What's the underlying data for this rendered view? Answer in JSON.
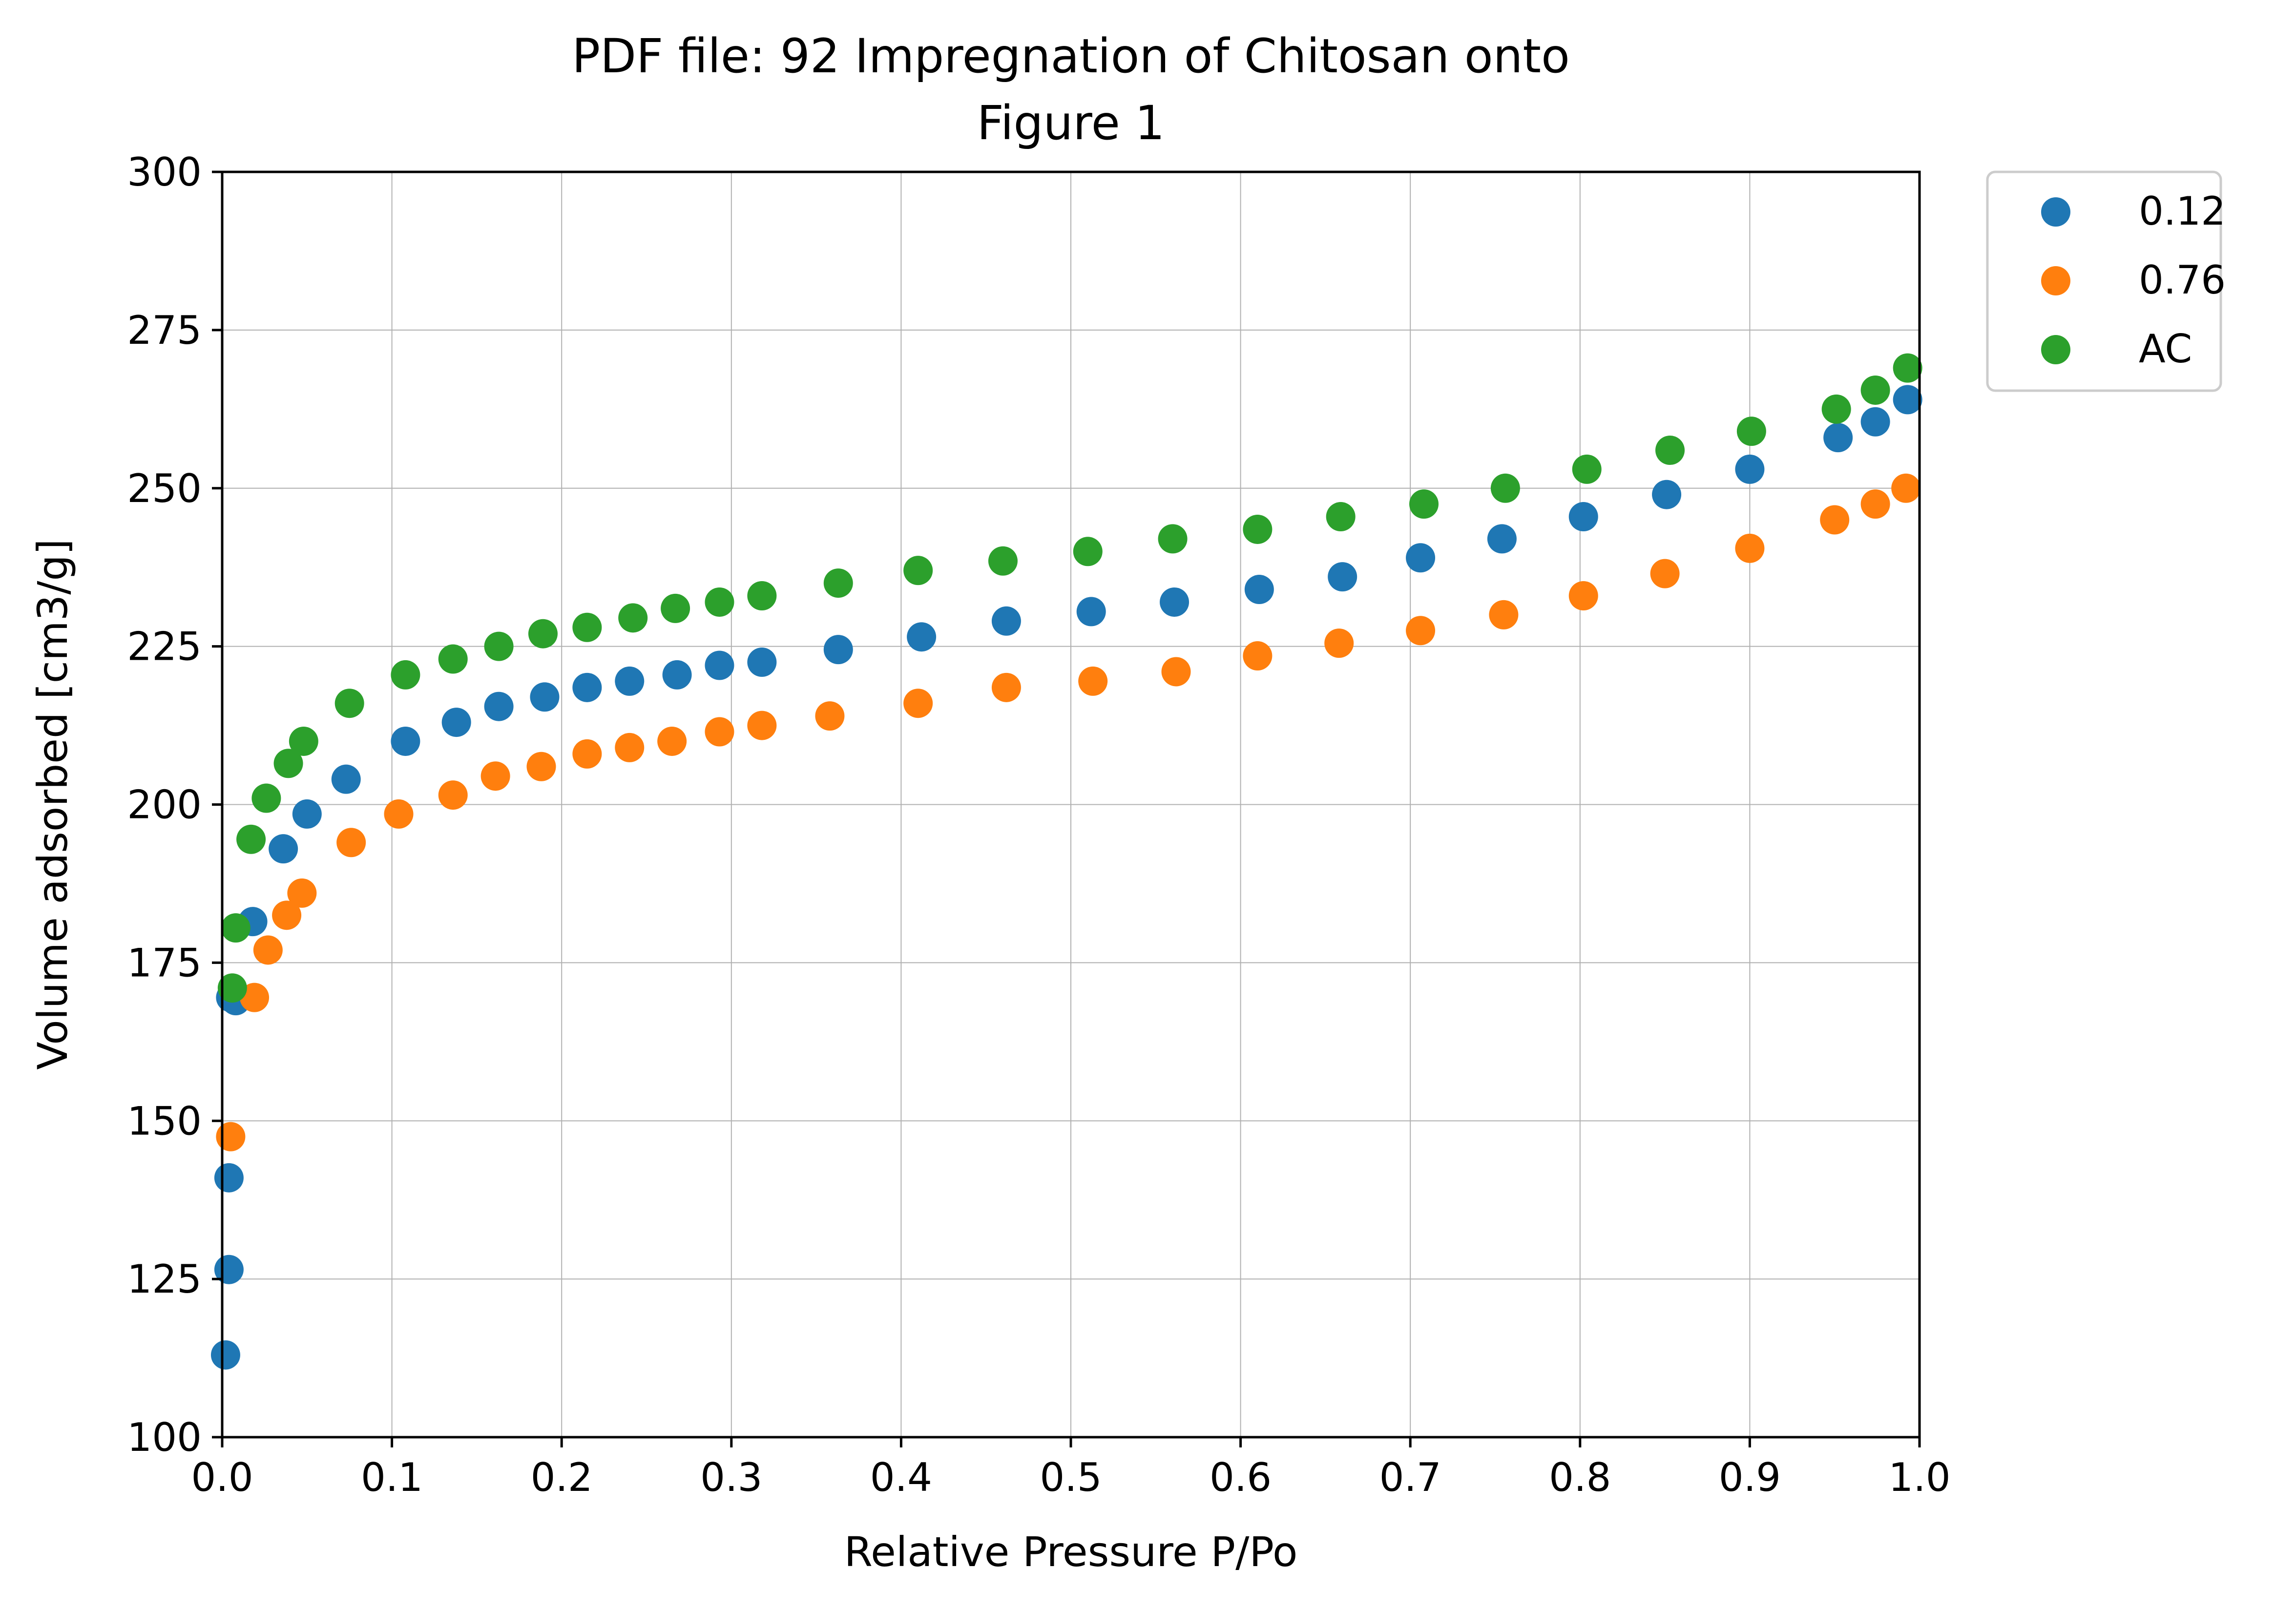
{
  "chart_data": {
    "type": "scatter",
    "title": "PDF file: 92 Impregnation of Chitosan onto",
    "subtitle": "Figure 1",
    "xlabel": "Relative Pressure P/Po",
    "ylabel": "Volume adsorbed [cm3/g]",
    "xlim": [
      0.0,
      1.0
    ],
    "ylim": [
      100,
      300
    ],
    "xticks": [
      "0.0",
      "0.1",
      "0.2",
      "0.3",
      "0.4",
      "0.5",
      "0.6",
      "0.7",
      "0.8",
      "0.9",
      "1.0"
    ],
    "yticks": [
      "100",
      "125",
      "150",
      "175",
      "200",
      "225",
      "250",
      "275",
      "300"
    ],
    "grid": true,
    "legend": "outside-top-right",
    "series": [
      {
        "name": "0.12",
        "color": "#1f77b4",
        "x": [
          0.002,
          0.004,
          0.004,
          0.005,
          0.008,
          0.018,
          0.036,
          0.05,
          0.073,
          0.108,
          0.138,
          0.163,
          0.19,
          0.215,
          0.24,
          0.268,
          0.293,
          0.318,
          0.363,
          0.412,
          0.462,
          0.512,
          0.561,
          0.611,
          0.66,
          0.706,
          0.754,
          0.802,
          0.851,
          0.9,
          0.952,
          0.974,
          0.993
        ],
        "y": [
          113,
          126.5,
          141,
          169.5,
          169,
          181.5,
          193,
          198.5,
          204,
          210,
          213,
          215.5,
          217,
          218.5,
          219.5,
          220.5,
          222,
          222.5,
          224.5,
          226.5,
          229,
          230.5,
          232,
          234,
          236,
          239,
          242,
          245.5,
          249,
          253,
          258,
          260.5,
          264
        ]
      },
      {
        "name": "0.76",
        "color": "#ff7f0e",
        "x": [
          0.005,
          0.019,
          0.027,
          0.038,
          0.047,
          0.076,
          0.104,
          0.136,
          0.161,
          0.188,
          0.215,
          0.24,
          0.265,
          0.293,
          0.318,
          0.358,
          0.41,
          0.462,
          0.513,
          0.562,
          0.61,
          0.658,
          0.706,
          0.755,
          0.802,
          0.85,
          0.9,
          0.95,
          0.974,
          0.992
        ],
        "y": [
          147.5,
          169.5,
          177,
          182.5,
          186,
          194,
          198.5,
          201.5,
          204.5,
          206,
          208,
          209,
          210,
          211.5,
          212.5,
          214,
          216,
          218.5,
          219.5,
          221,
          223.5,
          225.5,
          227.5,
          230,
          233,
          236.5,
          240.5,
          245,
          247.5,
          250
        ]
      },
      {
        "name": "AC",
        "color": "#2ca02c",
        "x": [
          0.006,
          0.008,
          0.017,
          0.026,
          0.039,
          0.048,
          0.075,
          0.108,
          0.136,
          0.163,
          0.189,
          0.215,
          0.242,
          0.267,
          0.293,
          0.318,
          0.363,
          0.41,
          0.46,
          0.51,
          0.56,
          0.61,
          0.659,
          0.708,
          0.756,
          0.804,
          0.853,
          0.901,
          0.951,
          0.974,
          0.993
        ],
        "y": [
          171,
          180.5,
          194.5,
          201,
          206.5,
          210,
          216,
          220.5,
          223,
          225,
          227,
          228,
          229.5,
          231,
          232,
          233,
          235,
          237,
          238.5,
          240,
          242,
          243.5,
          245.5,
          247.5,
          250,
          253,
          256,
          259,
          262.5,
          265.5,
          269
        ]
      }
    ]
  }
}
